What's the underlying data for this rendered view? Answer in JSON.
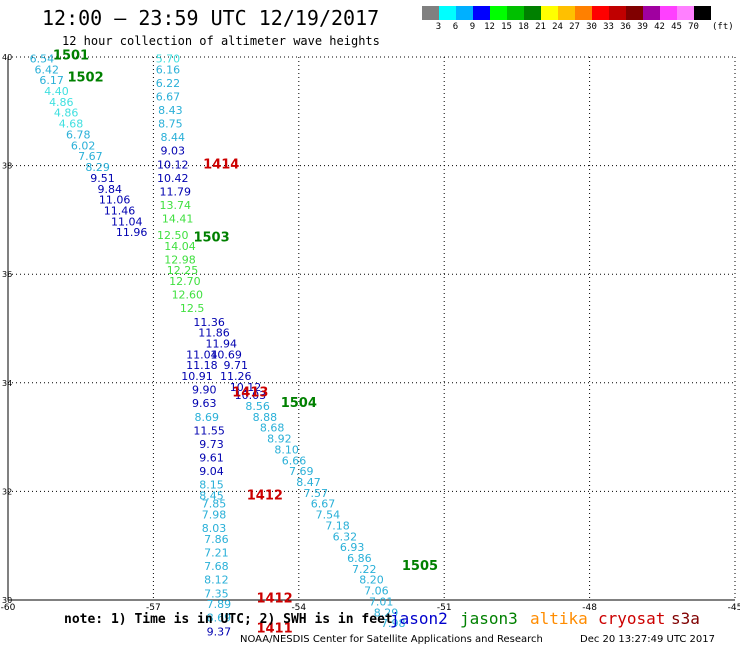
{
  "header": {
    "title": "12:00 – 23:59 UTC 12/19/2017",
    "subtitle": "12 hour collection of altimeter wave heights"
  },
  "legend": {
    "unit": "(ft)",
    "colors": [
      "#808080",
      "#00ffff",
      "#00b0ff",
      "#0000ff",
      "#00ff00",
      "#00c000",
      "#008000",
      "#ffff00",
      "#ffc000",
      "#ff8000",
      "#ff0000",
      "#c00000",
      "#800000",
      "#a000a0",
      "#ff40ff",
      "#ff80ff",
      "#000000"
    ],
    "labels": [
      "3",
      "6",
      "9",
      "12",
      "15",
      "18",
      "21",
      "24",
      "27",
      "30",
      "33",
      "36",
      "39",
      "42",
      "45",
      "70"
    ]
  },
  "footer": {
    "note": "note: 1) Time is in UTC; 2) SWH is in feet",
    "satellites": [
      {
        "name": "jason2",
        "color": "#0000cc"
      },
      {
        "name": "jason3",
        "color": "#008000"
      },
      {
        "name": "altika",
        "color": "#ff8c00"
      },
      {
        "name": "cryosat",
        "color": "#cc0000"
      },
      {
        "name": "s3a",
        "color": "#800000"
      }
    ],
    "credit": "NOAA/NESDIS Center for Satellite Applications and Research",
    "timestamp": "Dec 20 13:27:49 UTC 2017"
  },
  "chart_data": {
    "type": "scatter",
    "xlim": [
      -60,
      -45
    ],
    "ylim": [
      30,
      40
    ],
    "x_ticks": [
      -60,
      -57,
      -54,
      -51,
      -48,
      -45
    ],
    "y_ticks": [
      30,
      32,
      34,
      36,
      38,
      40
    ],
    "grid": true,
    "points": [
      {
        "x": -59.3,
        "y": 39.9,
        "v": "6.54",
        "color": "#2ab0d8"
      },
      {
        "x": -59.2,
        "y": 39.7,
        "v": "6.42",
        "color": "#2ab0d8"
      },
      {
        "x": -59.1,
        "y": 39.5,
        "v": "6.17",
        "color": "#2ab0d8"
      },
      {
        "x": -59.0,
        "y": 39.3,
        "v": "4.40",
        "color": "#40e0e0"
      },
      {
        "x": -58.9,
        "y": 39.1,
        "v": "4.86",
        "color": "#40e0e0"
      },
      {
        "x": -58.8,
        "y": 38.9,
        "v": "4.86",
        "color": "#40e0e0"
      },
      {
        "x": -58.7,
        "y": 38.7,
        "v": "4.68",
        "color": "#40e0e0"
      },
      {
        "x": -58.55,
        "y": 38.5,
        "v": "6.78",
        "color": "#2ab0d8"
      },
      {
        "x": -58.45,
        "y": 38.3,
        "v": "6.02",
        "color": "#2ab0d8"
      },
      {
        "x": -58.3,
        "y": 38.1,
        "v": "7.67",
        "color": "#2ab0d8"
      },
      {
        "x": -58.15,
        "y": 37.9,
        "v": "8.29",
        "color": "#2ab0d8"
      },
      {
        "x": -58.05,
        "y": 37.7,
        "v": "9.51",
        "color": "#0000b0"
      },
      {
        "x": -57.9,
        "y": 37.5,
        "v": "9.84",
        "color": "#0000b0"
      },
      {
        "x": -57.8,
        "y": 37.3,
        "v": "11.06",
        "color": "#0000b0"
      },
      {
        "x": -57.7,
        "y": 37.1,
        "v": "11.46",
        "color": "#0000b0"
      },
      {
        "x": -57.55,
        "y": 36.9,
        "v": "11.04",
        "color": "#0000b0"
      },
      {
        "x": -57.45,
        "y": 36.7,
        "v": "11.96",
        "color": "#0000b0"
      },
      {
        "x": -56.7,
        "y": 39.9,
        "v": "5.70",
        "color": "#40e0e0"
      },
      {
        "x": -56.7,
        "y": 39.7,
        "v": "6.16",
        "color": "#2ab0d8"
      },
      {
        "x": -56.7,
        "y": 39.45,
        "v": "6.22",
        "color": "#2ab0d8"
      },
      {
        "x": -56.7,
        "y": 39.2,
        "v": "6.67",
        "color": "#2ab0d8"
      },
      {
        "x": -56.65,
        "y": 38.95,
        "v": "8.43",
        "color": "#2ab0d8"
      },
      {
        "x": -56.65,
        "y": 38.7,
        "v": "8.75",
        "color": "#2ab0d8"
      },
      {
        "x": -56.6,
        "y": 38.45,
        "v": "8.44",
        "color": "#2ab0d8"
      },
      {
        "x": -56.6,
        "y": 38.2,
        "v": "9.03",
        "color": "#0000b0"
      },
      {
        "x": -56.6,
        "y": 37.95,
        "v": "10.12",
        "color": "#0000b0"
      },
      {
        "x": -56.6,
        "y": 37.7,
        "v": "10.42",
        "color": "#0000b0"
      },
      {
        "x": -56.55,
        "y": 37.45,
        "v": "11.79",
        "color": "#0000b0"
      },
      {
        "x": -56.55,
        "y": 37.2,
        "v": "13.74",
        "color": "#40e040"
      },
      {
        "x": -56.5,
        "y": 36.95,
        "v": "14.41",
        "color": "#40e040"
      },
      {
        "x": -56.6,
        "y": 36.65,
        "v": "12.50",
        "color": "#40e040"
      },
      {
        "x": -56.45,
        "y": 36.45,
        "v": "14.04",
        "color": "#40e040"
      },
      {
        "x": -56.45,
        "y": 36.2,
        "v": "12.98",
        "color": "#40e040"
      },
      {
        "x": -56.4,
        "y": 36.0,
        "v": "12.25",
        "color": "#40e040"
      },
      {
        "x": -56.35,
        "y": 35.8,
        "v": "12.70",
        "color": "#40e040"
      },
      {
        "x": -56.3,
        "y": 35.55,
        "v": "12.60",
        "color": "#40e040"
      },
      {
        "x": -56.2,
        "y": 35.3,
        "v": "12.5",
        "color": "#40e040"
      },
      {
        "x": -55.85,
        "y": 35.05,
        "v": "11.36",
        "color": "#0000b0"
      },
      {
        "x": -55.75,
        "y": 34.85,
        "v": "11.86",
        "color": "#0000b0"
      },
      {
        "x": -55.6,
        "y": 34.65,
        "v": "11.94",
        "color": "#0000b0"
      },
      {
        "x": -56.0,
        "y": 34.45,
        "v": "11.04",
        "color": "#0000b0"
      },
      {
        "x": -55.5,
        "y": 34.45,
        "v": "10.69",
        "color": "#0000b0"
      },
      {
        "x": -56.0,
        "y": 34.25,
        "v": "11.18",
        "color": "#0000b0"
      },
      {
        "x": -55.3,
        "y": 34.25,
        "v": "9.71",
        "color": "#0000b0"
      },
      {
        "x": -56.1,
        "y": 34.05,
        "v": "10.91",
        "color": "#0000b0"
      },
      {
        "x": -55.3,
        "y": 34.05,
        "v": "11.26",
        "color": "#0000b0"
      },
      {
        "x": -55.95,
        "y": 33.8,
        "v": "9.90",
        "color": "#0000b0"
      },
      {
        "x": -55.1,
        "y": 33.85,
        "v": "10.12",
        "color": "#0000b0"
      },
      {
        "x": -55.0,
        "y": 33.7,
        "v": "10.03",
        "color": "#0000b0"
      },
      {
        "x": -55.95,
        "y": 33.55,
        "v": "9.63",
        "color": "#0000b0"
      },
      {
        "x": -54.85,
        "y": 33.5,
        "v": "8.56",
        "color": "#2ab0d8"
      },
      {
        "x": -55.9,
        "y": 33.3,
        "v": "8.69",
        "color": "#2ab0d8"
      },
      {
        "x": -54.7,
        "y": 33.3,
        "v": "8.88",
        "color": "#2ab0d8"
      },
      {
        "x": -54.55,
        "y": 33.1,
        "v": "8.68",
        "color": "#2ab0d8"
      },
      {
        "x": -55.85,
        "y": 33.05,
        "v": "11.55",
        "color": "#0000b0"
      },
      {
        "x": -54.4,
        "y": 32.9,
        "v": "8.92",
        "color": "#2ab0d8"
      },
      {
        "x": -55.8,
        "y": 32.8,
        "v": "9.73",
        "color": "#0000b0"
      },
      {
        "x": -54.25,
        "y": 32.7,
        "v": "8.10",
        "color": "#2ab0d8"
      },
      {
        "x": -55.8,
        "y": 32.55,
        "v": "9.61",
        "color": "#0000b0"
      },
      {
        "x": -54.1,
        "y": 32.5,
        "v": "6.66",
        "color": "#2ab0d8"
      },
      {
        "x": -55.8,
        "y": 32.3,
        "v": "9.04",
        "color": "#0000b0"
      },
      {
        "x": -53.95,
        "y": 32.3,
        "v": "7.69",
        "color": "#2ab0d8"
      },
      {
        "x": -55.8,
        "y": 32.05,
        "v": "8.15",
        "color": "#2ab0d8"
      },
      {
        "x": -53.8,
        "y": 32.1,
        "v": "8.47",
        "color": "#2ab0d8"
      },
      {
        "x": -55.8,
        "y": 31.85,
        "v": "8.45",
        "color": "#2ab0d8"
      },
      {
        "x": -53.65,
        "y": 31.9,
        "v": "7.57",
        "color": "#2ab0d8"
      },
      {
        "x": -55.75,
        "y": 31.7,
        "v": "7.85",
        "color": "#2ab0d8"
      },
      {
        "x": -53.5,
        "y": 31.7,
        "v": "6.67",
        "color": "#2ab0d8"
      },
      {
        "x": -55.75,
        "y": 31.5,
        "v": "7.98",
        "color": "#2ab0d8"
      },
      {
        "x": -53.4,
        "y": 31.5,
        "v": "7.54",
        "color": "#2ab0d8"
      },
      {
        "x": -55.75,
        "y": 31.25,
        "v": "8.03",
        "color": "#2ab0d8"
      },
      {
        "x": -53.2,
        "y": 31.3,
        "v": "7.18",
        "color": "#2ab0d8"
      },
      {
        "x": -55.7,
        "y": 31.05,
        "v": "7.86",
        "color": "#2ab0d8"
      },
      {
        "x": -53.05,
        "y": 31.1,
        "v": "6.32",
        "color": "#2ab0d8"
      },
      {
        "x": -55.7,
        "y": 30.8,
        "v": "7.21",
        "color": "#2ab0d8"
      },
      {
        "x": -52.9,
        "y": 30.9,
        "v": "6.93",
        "color": "#2ab0d8"
      },
      {
        "x": -52.75,
        "y": 30.7,
        "v": "6.86",
        "color": "#2ab0d8"
      },
      {
        "x": -55.7,
        "y": 30.55,
        "v": "7.68",
        "color": "#2ab0d8"
      },
      {
        "x": -52.65,
        "y": 30.5,
        "v": "7.22",
        "color": "#2ab0d8"
      },
      {
        "x": -55.7,
        "y": 30.3,
        "v": "8.12",
        "color": "#2ab0d8"
      },
      {
        "x": -52.5,
        "y": 30.3,
        "v": "8.20",
        "color": "#2ab0d8"
      },
      {
        "x": -55.7,
        "y": 30.05,
        "v": "7.35",
        "color": "#2ab0d8"
      },
      {
        "x": -52.4,
        "y": 30.1,
        "v": "7.06",
        "color": "#2ab0d8"
      },
      {
        "x": -55.65,
        "y": 29.85,
        "v": "7.89",
        "color": "#2ab0d8"
      },
      {
        "x": -52.3,
        "y": 29.9,
        "v": "7.01",
        "color": "#2ab0d8"
      },
      {
        "x": -55.65,
        "y": 29.6,
        "v": "8.69",
        "color": "#2ab0d8"
      },
      {
        "x": -52.2,
        "y": 29.7,
        "v": "8.29",
        "color": "#2ab0d8"
      },
      {
        "x": -55.65,
        "y": 29.35,
        "v": "9.37",
        "color": "#0000b0"
      },
      {
        "x": -52.05,
        "y": 29.5,
        "v": "7.98",
        "color": "#2ab0d8"
      }
    ],
    "annotations": [
      {
        "x": -58.7,
        "y": 39.95,
        "text": "1501",
        "color": "#008000"
      },
      {
        "x": -58.4,
        "y": 39.55,
        "text": "1502",
        "color": "#008000"
      },
      {
        "x": -55.6,
        "y": 37.95,
        "text": "1414",
        "color": "#cc0000"
      },
      {
        "x": -55.8,
        "y": 36.6,
        "text": "1503",
        "color": "#008000"
      },
      {
        "x": -55.0,
        "y": 33.75,
        "text": "1413",
        "color": "#cc0000"
      },
      {
        "x": -54.0,
        "y": 33.55,
        "text": "1504",
        "color": "#008000"
      },
      {
        "x": -54.7,
        "y": 31.85,
        "text": "1412",
        "color": "#cc0000"
      },
      {
        "x": -51.5,
        "y": 30.55,
        "text": "1505",
        "color": "#008000"
      },
      {
        "x": -54.5,
        "y": 29.95,
        "text": "1412",
        "color": "#cc0000"
      },
      {
        "x": -54.5,
        "y": 29.4,
        "text": "1411",
        "color": "#cc0000"
      }
    ]
  }
}
